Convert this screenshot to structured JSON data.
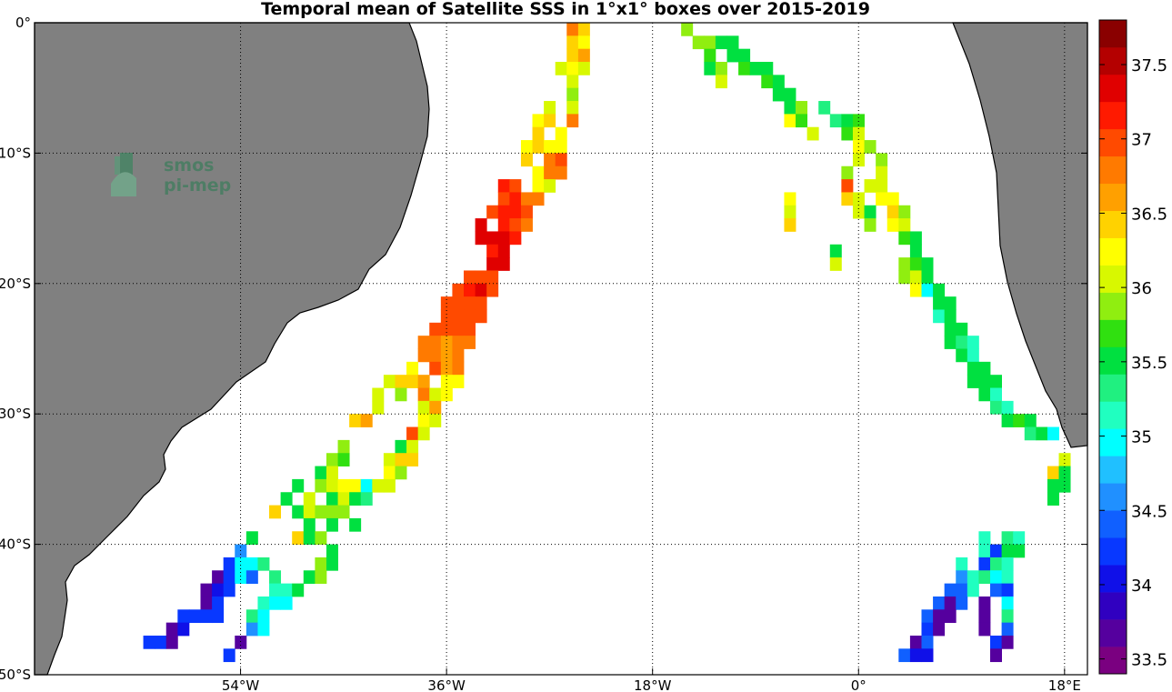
{
  "chart_data": {
    "type": "heatmap",
    "title": "Temporal mean of Satellite SSS in 1°x1° boxes over 2015-2019",
    "xlim": [
      -72,
      20
    ],
    "ylim": [
      -50,
      0
    ],
    "x_ticks": [
      {
        "value": -54,
        "label": "54°W"
      },
      {
        "value": -36,
        "label": "36°W"
      },
      {
        "value": -18,
        "label": "18°W"
      },
      {
        "value": 0,
        "label": "0°"
      },
      {
        "value": 18,
        "label": "18°E"
      }
    ],
    "y_ticks": [
      {
        "value": 0,
        "label": "0°"
      },
      {
        "value": -10,
        "label": "10°S"
      },
      {
        "value": -20,
        "label": "20°S"
      },
      {
        "value": -30,
        "label": "30°S"
      },
      {
        "value": -40,
        "label": "40°S"
      },
      {
        "value": -50,
        "label": "50°S"
      }
    ],
    "grid": "dotted",
    "colorbar": {
      "min": 33.4,
      "max": 37.8,
      "step": 0.2,
      "ticks": [
        33.5,
        34,
        34.5,
        35,
        35.5,
        36,
        36.5,
        37,
        37.5
      ],
      "colors": [
        "#7a0080",
        "#55009e",
        "#3000c0",
        "#1010e8",
        "#0838ff",
        "#1060ff",
        "#2090ff",
        "#20c0ff",
        "#00ffff",
        "#20ffc0",
        "#20f080",
        "#00e040",
        "#30e010",
        "#90ee10",
        "#d8f800",
        "#ffff00",
        "#ffd200",
        "#ffa000",
        "#ff7a00",
        "#ff4a00",
        "#ff1a00",
        "#e00000",
        "#b40000",
        "#8a0000"
      ]
    },
    "cells": [
      [
        -25,
        0,
        37.1
      ],
      [
        -24,
        0,
        36.6
      ],
      [
        -25,
        -1,
        36.8
      ],
      [
        -24,
        -1,
        36.5
      ],
      [
        -25,
        -2,
        36.6
      ],
      [
        -24,
        -2,
        36.9
      ],
      [
        -26,
        -3,
        36.2
      ],
      [
        -25,
        -3,
        36.4
      ],
      [
        -24,
        -3,
        36.2
      ],
      [
        -25,
        -4,
        36.2
      ],
      [
        -25,
        -5,
        36.1
      ],
      [
        -27,
        -6,
        36.3
      ],
      [
        -25,
        -6,
        36.2
      ],
      [
        -28,
        -7,
        36.4
      ],
      [
        -27,
        -7,
        36.7
      ],
      [
        -25,
        -7,
        37.1
      ],
      [
        -28,
        -8,
        36.6
      ],
      [
        -26,
        -8,
        36.4
      ],
      [
        -29,
        -9,
        36.5
      ],
      [
        -28,
        -9,
        36.7
      ],
      [
        -27,
        -9,
        36.5
      ],
      [
        -26,
        -9,
        36.4
      ],
      [
        -29,
        -10,
        36.7
      ],
      [
        -27,
        -10,
        37.0
      ],
      [
        -26,
        -10,
        37.2
      ],
      [
        -28,
        -11,
        36.4
      ],
      [
        -27,
        -11,
        37.0
      ],
      [
        -26,
        -11,
        37.0
      ],
      [
        -31,
        -12,
        37.4
      ],
      [
        -30,
        -12,
        37.2
      ],
      [
        -28,
        -12,
        36.5
      ],
      [
        -27,
        -12,
        36.3
      ],
      [
        -31,
        -13,
        37.3
      ],
      [
        -30,
        -13,
        37.5
      ],
      [
        -29,
        -13,
        37.1
      ],
      [
        -28,
        -13,
        37.0
      ],
      [
        -32,
        -14,
        37.3
      ],
      [
        -31,
        -14,
        37.4
      ],
      [
        -30,
        -14,
        37.4
      ],
      [
        -29,
        -14,
        37.2
      ],
      [
        -33,
        -15,
        37.7
      ],
      [
        -31,
        -15,
        37.4
      ],
      [
        -30,
        -15,
        37.3
      ],
      [
        -29,
        -15,
        37.1
      ],
      [
        -33,
        -16,
        37.7
      ],
      [
        -32,
        -16,
        37.6
      ],
      [
        -31,
        -16,
        37.7
      ],
      [
        -30,
        -16,
        37.4
      ],
      [
        -32,
        -17,
        37.5
      ],
      [
        -31,
        -17,
        37.6
      ],
      [
        -32,
        -18,
        37.7
      ],
      [
        -31,
        -18,
        37.6
      ],
      [
        -34,
        -19,
        37.3
      ],
      [
        -33,
        -19,
        37.2
      ],
      [
        -32,
        -19,
        37.3
      ],
      [
        -35,
        -20,
        37.2
      ],
      [
        -34,
        -20,
        37.4
      ],
      [
        -33,
        -20,
        37.7
      ],
      [
        -32,
        -20,
        37.3
      ],
      [
        -36,
        -21,
        37.3
      ],
      [
        -35,
        -21,
        37.3
      ],
      [
        -34,
        -21,
        37.3
      ],
      [
        -33,
        -21,
        37.3
      ],
      [
        -36,
        -22,
        37.3
      ],
      [
        -35,
        -22,
        37.2
      ],
      [
        -34,
        -22,
        37.3
      ],
      [
        -33,
        -22,
        37.3
      ],
      [
        -37,
        -23,
        37.2
      ],
      [
        -36,
        -23,
        37.3
      ],
      [
        -35,
        -23,
        37.3
      ],
      [
        -34,
        -23,
        37.3
      ],
      [
        -38,
        -24,
        37.1
      ],
      [
        -37,
        -24,
        37.1
      ],
      [
        -36,
        -24,
        36.9
      ],
      [
        -35,
        -24,
        37.1
      ],
      [
        -34,
        -24,
        37.1
      ],
      [
        -38,
        -25,
        37.1
      ],
      [
        -37,
        -25,
        37.1
      ],
      [
        -36,
        -25,
        36.9
      ],
      [
        -35,
        -25,
        37.1
      ],
      [
        -39,
        -26,
        36.5
      ],
      [
        -37,
        -26,
        37.2
      ],
      [
        -36,
        -26,
        36.9
      ],
      [
        -35,
        -26,
        37.0
      ],
      [
        -41,
        -27,
        36.2
      ],
      [
        -40,
        -27,
        36.6
      ],
      [
        -39,
        -27,
        36.6
      ],
      [
        -38,
        -27,
        36.9
      ],
      [
        -36,
        -27,
        36.5
      ],
      [
        -35,
        -27,
        36.5
      ],
      [
        -42,
        -28,
        36.3
      ],
      [
        -40,
        -28,
        36.1
      ],
      [
        -38,
        -28,
        37.1
      ],
      [
        -37,
        -28,
        36.2
      ],
      [
        -36,
        -28,
        36.5
      ],
      [
        -42,
        -29,
        36.2
      ],
      [
        -38,
        -29,
        36.3
      ],
      [
        -37,
        -29,
        36.9
      ],
      [
        -44,
        -30,
        36.8
      ],
      [
        -43,
        -30,
        36.9
      ],
      [
        -38,
        -30,
        36.5
      ],
      [
        -37,
        -30,
        36.3
      ],
      [
        -39,
        -31,
        37.3
      ],
      [
        -38,
        -31,
        36.2
      ],
      [
        -45,
        -32,
        36.1
      ],
      [
        -40,
        -32,
        35.8
      ],
      [
        -39,
        -32,
        36.2
      ],
      [
        -46,
        -33,
        36.1
      ],
      [
        -45,
        -33,
        35.9
      ],
      [
        -41,
        -33,
        36.2
      ],
      [
        -40,
        -33,
        36.6
      ],
      [
        -39,
        -33,
        36.6
      ],
      [
        -47,
        -34,
        35.7
      ],
      [
        -46,
        -34,
        36.3
      ],
      [
        -41,
        -34,
        36.4
      ],
      [
        -40,
        -34,
        36.1
      ],
      [
        -49,
        -35,
        35.8
      ],
      [
        -47,
        -35,
        36.1
      ],
      [
        -46,
        -35,
        36.3
      ],
      [
        -45,
        -35,
        36.5
      ],
      [
        -44,
        -35,
        36.4
      ],
      [
        -43,
        -35,
        35.0
      ],
      [
        -42,
        -35,
        36.2
      ],
      [
        -41,
        -35,
        36.2
      ],
      [
        -50,
        -36,
        35.7
      ],
      [
        -48,
        -36,
        36.3
      ],
      [
        -46,
        -36,
        35.6
      ],
      [
        -45,
        -36,
        36.2
      ],
      [
        -44,
        -36,
        35.6
      ],
      [
        -43,
        -36,
        35.5
      ],
      [
        -51,
        -37,
        36.7
      ],
      [
        -49,
        -37,
        35.7
      ],
      [
        -48,
        -37,
        36.2
      ],
      [
        -47,
        -37,
        36.1
      ],
      [
        -46,
        -37,
        36.1
      ],
      [
        -45,
        -37,
        36.1
      ],
      [
        -48,
        -38,
        35.8
      ],
      [
        -46,
        -38,
        35.6
      ],
      [
        -44,
        -38,
        35.6
      ],
      [
        -53,
        -39,
        35.7
      ],
      [
        -49,
        -39,
        36.6
      ],
      [
        -48,
        -39,
        35.8
      ],
      [
        -47,
        -39,
        36.1
      ],
      [
        -54,
        -40,
        34.8
      ],
      [
        -46,
        -40,
        35.8
      ],
      [
        -55,
        -41,
        34.2
      ],
      [
        -54,
        -41,
        35.1
      ],
      [
        -53,
        -41,
        35.0
      ],
      [
        -52,
        -41,
        35.4
      ],
      [
        -47,
        -41,
        36.0
      ],
      [
        -46,
        -41,
        35.7
      ],
      [
        -56,
        -42,
        33.7
      ],
      [
        -55,
        -42,
        34.3
      ],
      [
        -54,
        -42,
        35.1
      ],
      [
        -53,
        -42,
        34.5
      ],
      [
        -51,
        -42,
        35.4
      ],
      [
        -48,
        -42,
        35.8
      ],
      [
        -47,
        -42,
        36.0
      ],
      [
        -57,
        -43,
        33.8
      ],
      [
        -56,
        -43,
        34.1
      ],
      [
        -55,
        -43,
        34.3
      ],
      [
        -51,
        -43,
        35.2
      ],
      [
        -50,
        -43,
        35.3
      ],
      [
        -49,
        -43,
        35.6
      ],
      [
        -57,
        -44,
        33.8
      ],
      [
        -56,
        -44,
        34.2
      ],
      [
        -52,
        -44,
        35.3
      ],
      [
        -51,
        -44,
        35.1
      ],
      [
        -50,
        -44,
        35.1
      ],
      [
        -59,
        -45,
        34.2
      ],
      [
        -58,
        -45,
        34.2
      ],
      [
        -57,
        -45,
        34.2
      ],
      [
        -56,
        -45,
        34.2
      ],
      [
        -53,
        -45,
        35.5
      ],
      [
        -52,
        -45,
        35.1
      ],
      [
        -60,
        -46,
        33.6
      ],
      [
        -59,
        -46,
        34.1
      ],
      [
        -53,
        -46,
        34.8
      ],
      [
        -52,
        -46,
        35.1
      ],
      [
        -62,
        -47,
        34.2
      ],
      [
        -61,
        -47,
        34.2
      ],
      [
        -60,
        -47,
        33.8
      ],
      [
        -54,
        -47,
        33.8
      ],
      [
        -55,
        -48,
        34.3
      ],
      [
        -15,
        0,
        36.0
      ],
      [
        -14,
        -1,
        36.0
      ],
      [
        -13,
        -1,
        36.0
      ],
      [
        -12,
        -1,
        35.6
      ],
      [
        -11,
        -1,
        35.6
      ],
      [
        -13,
        -2,
        35.9
      ],
      [
        -11,
        -2,
        35.6
      ],
      [
        -10,
        -2,
        35.8
      ],
      [
        -13,
        -3,
        35.8
      ],
      [
        -12,
        -3,
        36.1
      ],
      [
        -10,
        -3,
        35.9
      ],
      [
        -9,
        -3,
        35.8
      ],
      [
        -8,
        -3,
        35.6
      ],
      [
        -12,
        -4,
        36.3
      ],
      [
        -8,
        -4,
        35.9
      ],
      [
        -7,
        -4,
        35.6
      ],
      [
        -7,
        -5,
        35.6
      ],
      [
        -6,
        -5,
        35.8
      ],
      [
        -6,
        -6,
        35.7
      ],
      [
        -5,
        -6,
        36.1
      ],
      [
        -3,
        -6,
        35.5
      ],
      [
        -6,
        -7,
        36.4
      ],
      [
        -5,
        -7,
        35.9
      ],
      [
        -2,
        -7,
        35.5
      ],
      [
        -1,
        -7,
        35.6
      ],
      [
        0,
        -7,
        35.9
      ],
      [
        -4,
        -8,
        36.2
      ],
      [
        -1,
        -8,
        35.9
      ],
      [
        0,
        -8,
        36.2
      ],
      [
        0,
        -9,
        36.4
      ],
      [
        1,
        -9,
        36.1
      ],
      [
        0,
        -10,
        36.3
      ],
      [
        2,
        -10,
        36.1
      ],
      [
        -1,
        -11,
        36.1
      ],
      [
        2,
        -11,
        36.3
      ],
      [
        -1,
        -12,
        37.2
      ],
      [
        1,
        -12,
        36.2
      ],
      [
        2,
        -12,
        36.3
      ],
      [
        -6,
        -13,
        36.5
      ],
      [
        -1,
        -13,
        36.8
      ],
      [
        0,
        -13,
        36.3
      ],
      [
        2,
        -13,
        36.4
      ],
      [
        3,
        -13,
        36.4
      ],
      [
        -6,
        -14,
        36.2
      ],
      [
        0,
        -14,
        36.2
      ],
      [
        1,
        -14,
        35.7
      ],
      [
        3,
        -14,
        36.6
      ],
      [
        4,
        -14,
        36.1
      ],
      [
        -6,
        -15,
        36.6
      ],
      [
        1,
        -15,
        36.1
      ],
      [
        3,
        -15,
        36.4
      ],
      [
        4,
        -15,
        36.2
      ],
      [
        4,
        -16,
        35.9
      ],
      [
        5,
        -16,
        35.7
      ],
      [
        -2,
        -17,
        35.7
      ],
      [
        5,
        -17,
        35.7
      ],
      [
        -2,
        -18,
        36.3
      ],
      [
        4,
        -18,
        36.1
      ],
      [
        5,
        -18,
        35.9
      ],
      [
        6,
        -18,
        35.8
      ],
      [
        4,
        -19,
        36.1
      ],
      [
        5,
        -19,
        36.3
      ],
      [
        6,
        -19,
        35.7
      ],
      [
        5,
        -20,
        36.5
      ],
      [
        6,
        -20,
        35.1
      ],
      [
        7,
        -20,
        35.7
      ],
      [
        7,
        -21,
        35.7
      ],
      [
        8,
        -21,
        35.8
      ],
      [
        7,
        -22,
        35.3
      ],
      [
        8,
        -22,
        35.7
      ],
      [
        8,
        -23,
        35.6
      ],
      [
        9,
        -23,
        35.8
      ],
      [
        8,
        -24,
        35.6
      ],
      [
        9,
        -24,
        35.4
      ],
      [
        10,
        -24,
        35.3
      ],
      [
        9,
        -25,
        35.6
      ],
      [
        10,
        -25,
        35.3
      ],
      [
        10,
        -26,
        35.7
      ],
      [
        11,
        -26,
        35.7
      ],
      [
        10,
        -27,
        35.6
      ],
      [
        11,
        -27,
        35.7
      ],
      [
        12,
        -27,
        35.6
      ],
      [
        11,
        -28,
        35.7
      ],
      [
        12,
        -28,
        35.3
      ],
      [
        12,
        -29,
        35.5
      ],
      [
        13,
        -29,
        35.3
      ],
      [
        13,
        -30,
        35.6
      ],
      [
        14,
        -30,
        35.9
      ],
      [
        15,
        -30,
        35.8
      ],
      [
        15,
        -31,
        35.5
      ],
      [
        16,
        -31,
        35.6
      ],
      [
        17,
        -31,
        35.1
      ],
      [
        18,
        -33,
        36.2
      ],
      [
        17,
        -34,
        36.8
      ],
      [
        18,
        -34,
        35.7
      ],
      [
        17,
        -35,
        35.6
      ],
      [
        18,
        -35,
        35.6
      ],
      [
        17,
        -36,
        35.6
      ],
      [
        11,
        -39,
        35.3
      ],
      [
        13,
        -39,
        35.5
      ],
      [
        14,
        -39,
        35.2
      ],
      [
        11,
        -40,
        35.3
      ],
      [
        12,
        -40,
        34.3
      ],
      [
        13,
        -40,
        35.7
      ],
      [
        14,
        -40,
        35.7
      ],
      [
        9,
        -41,
        35.3
      ],
      [
        11,
        -41,
        34.3
      ],
      [
        12,
        -41,
        35.5
      ],
      [
        13,
        -41,
        35.3
      ],
      [
        9,
        -42,
        34.6
      ],
      [
        10,
        -42,
        35.3
      ],
      [
        11,
        -42,
        35.4
      ],
      [
        12,
        -42,
        35.1
      ],
      [
        13,
        -42,
        35.2
      ],
      [
        8,
        -43,
        34.4
      ],
      [
        9,
        -43,
        34.4
      ],
      [
        10,
        -43,
        35.2
      ],
      [
        12,
        -43,
        34.4
      ],
      [
        13,
        -43,
        34.3
      ],
      [
        7,
        -44,
        34.4
      ],
      [
        8,
        -44,
        33.8
      ],
      [
        9,
        -44,
        34.5
      ],
      [
        11,
        -44,
        33.7
      ],
      [
        13,
        -44,
        35.1
      ],
      [
        6,
        -45,
        34.4
      ],
      [
        7,
        -45,
        33.7
      ],
      [
        8,
        -45,
        33.8
      ],
      [
        11,
        -45,
        33.7
      ],
      [
        13,
        -45,
        35.4
      ],
      [
        6,
        -46,
        34.3
      ],
      [
        7,
        -46,
        33.7
      ],
      [
        11,
        -46,
        33.7
      ],
      [
        13,
        -46,
        34.4
      ],
      [
        5,
        -47,
        33.6
      ],
      [
        6,
        -47,
        34.4
      ],
      [
        12,
        -47,
        34.2
      ],
      [
        13,
        -47,
        33.6
      ],
      [
        4,
        -48,
        34.4
      ],
      [
        5,
        -48,
        34.0
      ],
      [
        6,
        -48,
        34.0
      ],
      [
        12,
        -48,
        33.7
      ]
    ]
  },
  "logo": {
    "line1": "smos",
    "line2": "pi-mep"
  },
  "colors": {
    "land": "#808080",
    "ocean": "#ffffff",
    "grid": "#000000"
  }
}
